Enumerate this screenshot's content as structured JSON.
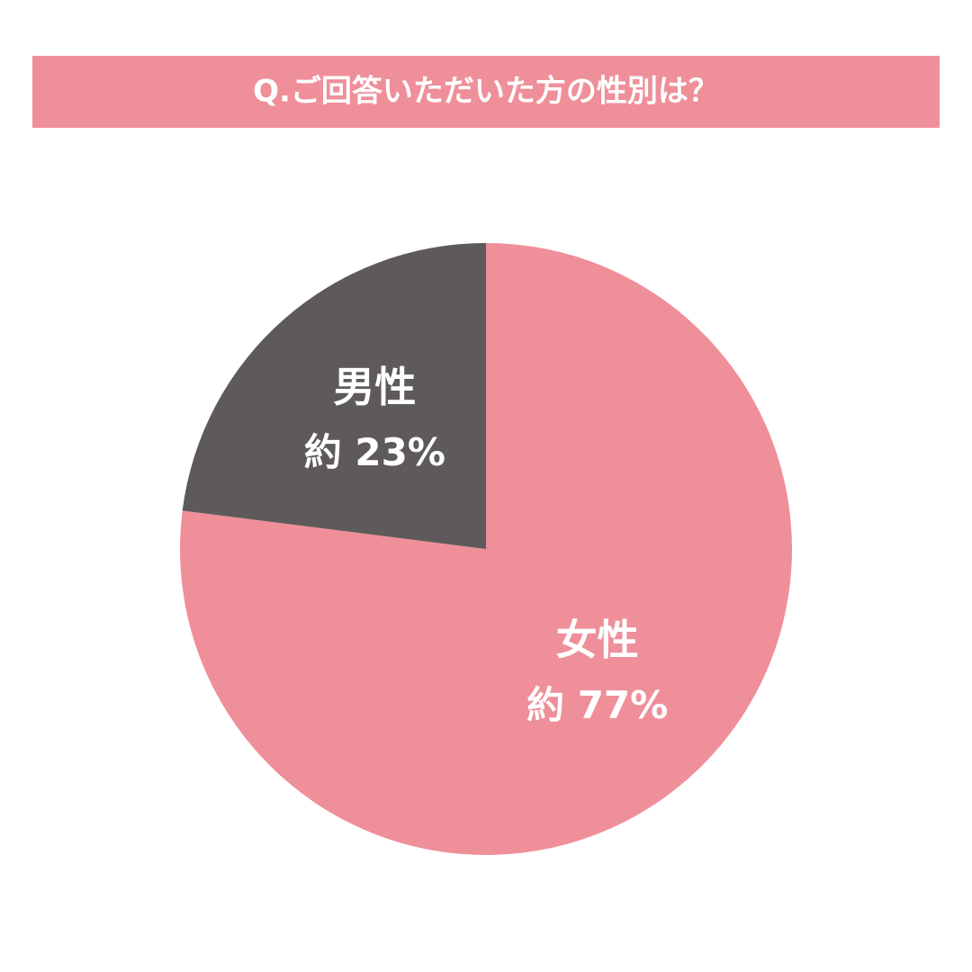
{
  "chart_data": {
    "type": "pie",
    "title": "Q.ご回答いただいた方の性別は？",
    "categories": [
      "女性",
      "男性"
    ],
    "values": [
      77,
      23
    ],
    "value_labels": [
      "約 77%",
      "約 23%"
    ],
    "colors": [
      "#ef8f9a",
      "#5e5a5b"
    ],
    "title_color": "#ef8f9a"
  }
}
